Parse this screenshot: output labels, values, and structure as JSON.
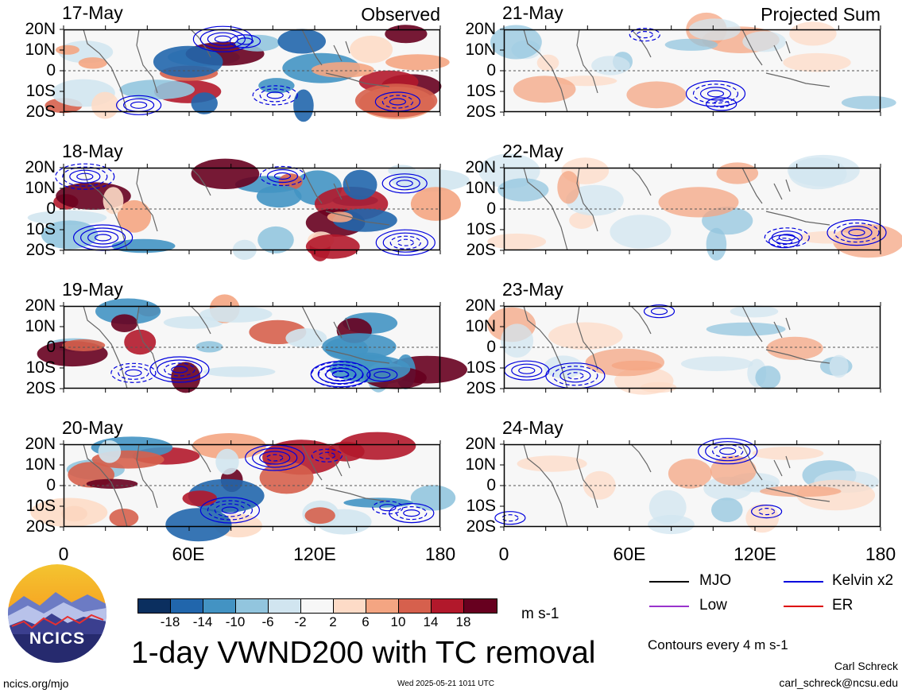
{
  "chart_data": {
    "type": "heatmap",
    "title": "1-day VWND200 with TC removal",
    "units": "m s-1",
    "columns": [
      {
        "title": "Observed",
        "dates": [
          "17-May",
          "18-May",
          "19-May",
          "20-May"
        ]
      },
      {
        "title": "Projected Sum",
        "dates": [
          "21-May",
          "22-May",
          "23-May",
          "24-May"
        ]
      }
    ],
    "y_ticks": [
      "20N",
      "10N",
      "0",
      "10S",
      "20S"
    ],
    "x_ticks": [
      "0",
      "60E",
      "120E",
      "180"
    ],
    "colorbar": {
      "levels": [
        "-18",
        "-14",
        "-10",
        "-6",
        "-2",
        "2",
        "6",
        "10",
        "14",
        "18"
      ],
      "colors": [
        "#0b2f5f",
        "#2166ac",
        "#4393c3",
        "#92c5de",
        "#d1e5f0",
        "#f7f7f7",
        "#fddbc7",
        "#f4a582",
        "#d6604d",
        "#b2182b",
        "#67001f"
      ]
    },
    "contour_legend": [
      {
        "label": "MJO",
        "color": "#000000"
      },
      {
        "label": "Kelvin x2",
        "color": "#0000dd"
      },
      {
        "label": "Low",
        "color": "#9933cc"
      },
      {
        "label": "ER",
        "color": "#dd0000"
      }
    ],
    "contour_note": "Contours every 4 m s-1"
  },
  "logo": {
    "text": "NCICS"
  },
  "footer": {
    "url": "ncics.org/mjo",
    "timestamp": "Wed 2025-05-21 1011 UTC",
    "author": "Carl Schreck",
    "email": "carl_schreck@ncsu.edu"
  }
}
